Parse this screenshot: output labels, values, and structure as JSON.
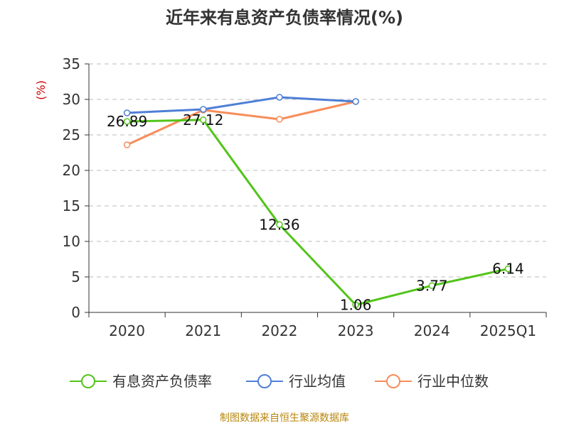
{
  "chart_data": {
    "type": "line",
    "title": "近年来有息资产负债率情况(%)",
    "ylabel": "(%)",
    "xlabel": "",
    "categories": [
      "2020",
      "2021",
      "2022",
      "2023",
      "2024",
      "2025Q1"
    ],
    "ylim": [
      0,
      35
    ],
    "yticks": [
      0,
      5,
      10,
      15,
      20,
      25,
      30,
      35
    ],
    "grid": true,
    "series": [
      {
        "name": "有息资产负债率",
        "color": "#52c41a",
        "values": [
          26.89,
          27.12,
          12.36,
          1.06,
          3.77,
          6.14
        ],
        "labels": [
          "26.89",
          "27.12",
          "12.36",
          "1.06",
          "3.77",
          "6.14"
        ]
      },
      {
        "name": "行业均值",
        "color": "#4e7fd6",
        "values": [
          28.1,
          28.6,
          30.3,
          29.7,
          null,
          null
        ]
      },
      {
        "name": "行业中位数",
        "color": "#f78d5a",
        "values": [
          23.6,
          28.5,
          27.2,
          29.7,
          null,
          null
        ]
      }
    ],
    "legend_position": "bottom"
  },
  "source": "制图数据来自恒生聚源数据库"
}
